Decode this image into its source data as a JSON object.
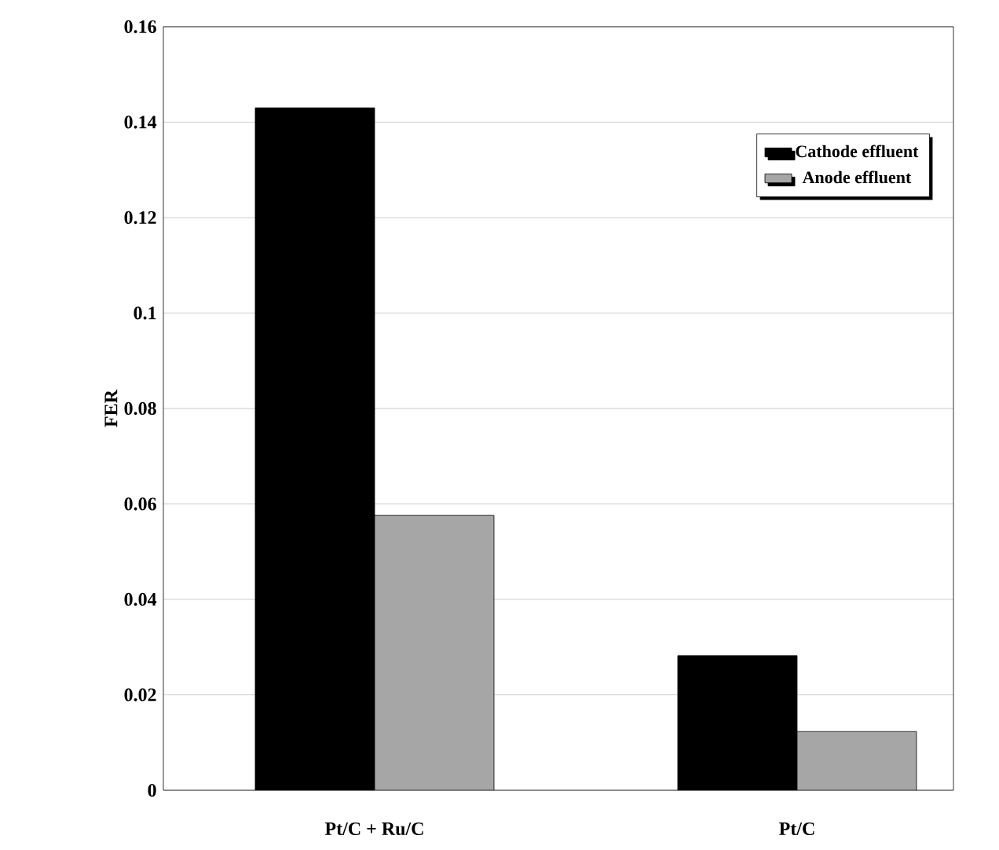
{
  "chart_data": {
    "type": "bar",
    "ylabel": "FER",
    "categories": [
      "Pt/C  +  Ru/C",
      "Pt/C"
    ],
    "series": [
      {
        "name": "Cathode effluent",
        "color": "#000000",
        "values": [
          0.143,
          0.0282
        ]
      },
      {
        "name": "Anode effluent",
        "color": "#a6a6a6",
        "values": [
          0.0576,
          0.0123
        ]
      }
    ],
    "ylim": [
      0,
      0.16
    ],
    "yticks": [
      0,
      0.02,
      0.04,
      0.06,
      0.08,
      0.1,
      0.12,
      0.14,
      0.16
    ],
    "grid": "y",
    "legend": "top right"
  }
}
